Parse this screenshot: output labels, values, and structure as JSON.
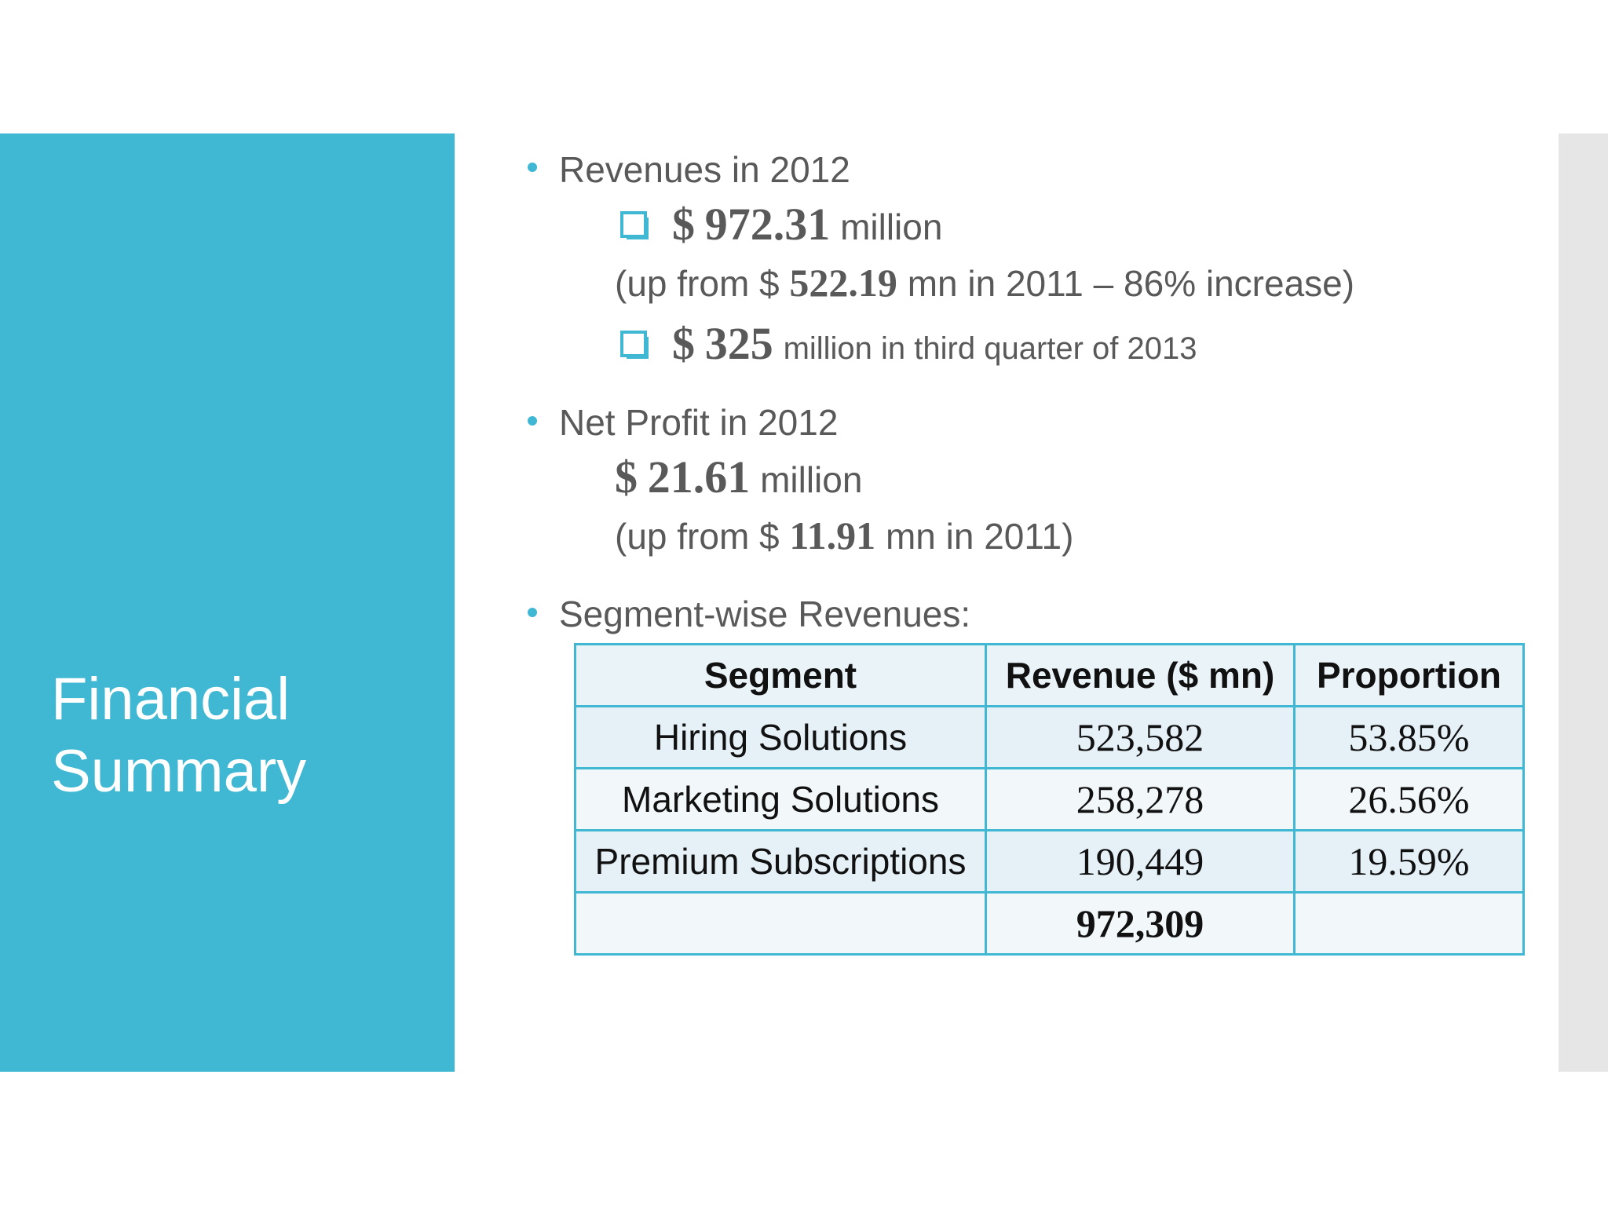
{
  "title": "Financial Summary",
  "revenues": {
    "heading": "Revenues in 2012",
    "amount_symbol": "$",
    "amount": "972.31",
    "amount_unit": "million",
    "comparison_prefix": "(up from $",
    "comparison_value": "522.19",
    "comparison_suffix": "mn in 2011 – 86% increase)",
    "q3_symbol": "$",
    "q3_amount": "325",
    "q3_text": "million in third quarter of 2013"
  },
  "net_profit": {
    "heading": "Net Profit in 2012",
    "amount_symbol": "$",
    "amount": "21.61",
    "amount_unit": "million",
    "comparison_prefix": "(up from $",
    "comparison_value": "11.91",
    "comparison_suffix": "mn in 2011)"
  },
  "segments": {
    "heading": "Segment-wise Revenues:",
    "columns": [
      "Segment",
      "Revenue ($ mn)",
      "Proportion"
    ],
    "rows": [
      {
        "segment": "Hiring Solutions",
        "revenue": "523,582",
        "proportion": "53.85%"
      },
      {
        "segment": "Marketing Solutions",
        "revenue": "258,278",
        "proportion": "26.56%"
      },
      {
        "segment": "Premium Subscriptions",
        "revenue": "190,449",
        "proportion": "19.59%"
      }
    ],
    "total": "972,309"
  },
  "colors": {
    "accent": "#40b8d4",
    "side_bar": "#e6e6e6",
    "text": "#595959"
  }
}
